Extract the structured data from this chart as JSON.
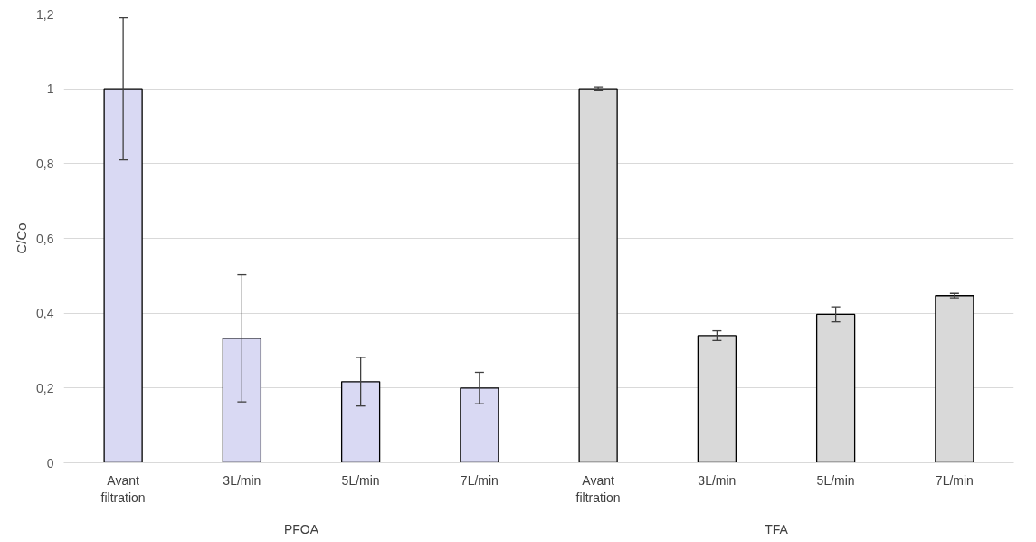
{
  "chart_data": {
    "type": "bar",
    "ylabel": "C/Co",
    "categories": [
      "Avant filtration",
      "3L/min",
      "5L/min",
      "7L/min",
      "Avant filtration",
      "3L/min",
      "5L/min",
      "7L/min"
    ],
    "values": [
      1.0,
      0.333,
      0.217,
      0.2,
      1.0,
      0.34,
      0.397,
      0.447
    ],
    "errors": [
      0.19,
      0.17,
      0.065,
      0.042,
      0.005,
      0.013,
      0.02,
      0.006
    ],
    "colors": [
      "#d9d9f3",
      "#d9d9f3",
      "#d9d9f3",
      "#d9d9f3",
      "#d9d9d9",
      "#d9d9d9",
      "#d9d9d9",
      "#d9d9d9"
    ],
    "annotations": [
      "PFOA",
      "TFA"
    ],
    "ylim": [
      0,
      1.2
    ],
    "yticks": [
      {
        "value": 0,
        "label": "0"
      },
      {
        "value": 0.2,
        "label": "0,2"
      },
      {
        "value": 0.4,
        "label": "0,4"
      },
      {
        "value": 0.6,
        "label": "0,6"
      },
      {
        "value": 0.8,
        "label": "0,8"
      },
      {
        "value": 1,
        "label": "1"
      },
      {
        "value": 1.2,
        "label": "1,2"
      }
    ],
    "grid": "y"
  }
}
